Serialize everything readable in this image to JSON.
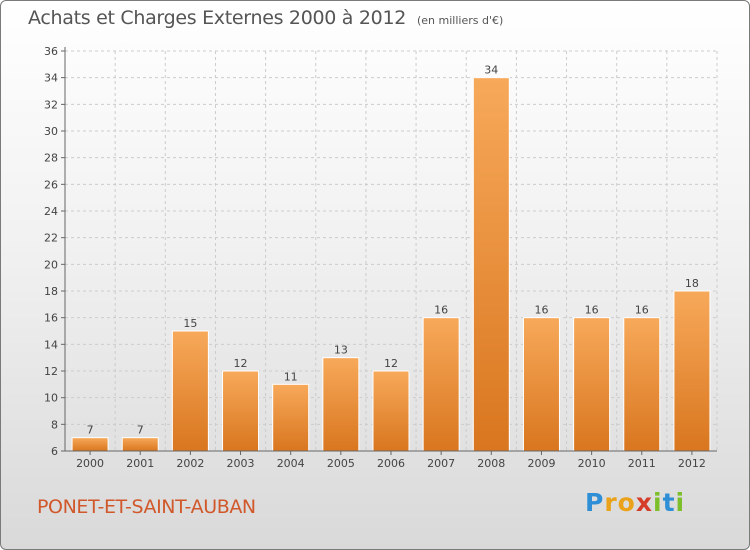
{
  "header": {
    "title": "Achats et Charges Externes 2000 à 2012",
    "subtitle": "(en milliers d'€)"
  },
  "footer": {
    "city": "PONET-ET-SAINT-AUBAN",
    "logo_letters": [
      "P",
      "r",
      "o",
      "x",
      "i",
      "t",
      "i"
    ],
    "logo_colors": [
      "#2f8fd6",
      "#e9a21a",
      "#e9a21a",
      "#d63c2a",
      "#7cbf2a",
      "#2f8fd6",
      "#7cbf2a"
    ]
  },
  "colors": {
    "bar_light": "#f7a95a",
    "bar_dark": "#d9761f",
    "grid": "#cccccc",
    "axis": "#666666"
  },
  "chart_data": {
    "type": "bar",
    "title": "Achats et Charges Externes 2000 à 2012",
    "subtitle": "(en milliers d'€)",
    "categories": [
      "2000",
      "2001",
      "2002",
      "2003",
      "2004",
      "2005",
      "2006",
      "2007",
      "2008",
      "2009",
      "2010",
      "2011",
      "2012"
    ],
    "values": [
      7,
      7,
      15,
      12,
      11,
      13,
      12,
      16,
      34,
      16,
      16,
      16,
      18
    ],
    "ylim": [
      6,
      36
    ],
    "yticks": [
      6,
      8,
      10,
      12,
      14,
      16,
      18,
      20,
      22,
      24,
      26,
      28,
      30,
      32,
      34,
      36
    ],
    "grid": true,
    "xlabel": "",
    "ylabel": ""
  }
}
